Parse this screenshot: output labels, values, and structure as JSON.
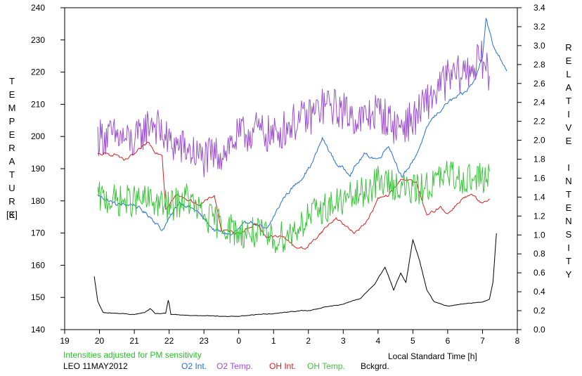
{
  "chart_data": {
    "type": "line",
    "x_ticks": [
      "19",
      "20",
      "21",
      "22",
      "23",
      "0",
      "1",
      "2",
      "3",
      "4",
      "5",
      "6",
      "7",
      "8"
    ],
    "y_left": {
      "label": "TEMPERATURE",
      "unit": "[K]",
      "ylim": [
        140,
        240
      ],
      "ticks": [
        "140",
        "150",
        "160",
        "170",
        "180",
        "190",
        "200",
        "210",
        "220",
        "230",
        "240"
      ]
    },
    "y_right": {
      "label": "RELATIVE INTENSITY",
      "ylim": [
        0.0,
        3.4
      ],
      "ticks": [
        "0.0",
        "0.2",
        "0.4",
        "0.6",
        "0.8",
        "1.0",
        "1.2",
        "1.4",
        "1.6",
        "1.8",
        "2.0",
        "2.2",
        "2.4",
        "2.6",
        "2.8",
        "3.0",
        "3.2",
        "3.4"
      ]
    },
    "xlabel": "Local Standard Time [h]",
    "note": "Intensities adjusted for PM sensitivity",
    "station_date": "LEO 11MAY2012",
    "grid": false,
    "legend_position": "bottom",
    "series": [
      {
        "name": "O2 Int.",
        "axis": "right",
        "color": "#1f6fd6",
        "noise": 0.04,
        "x": [
          19.95,
          20.5,
          21.0,
          21.5,
          21.8,
          22.3,
          22.8,
          23.3,
          23.8,
          24.3,
          24.8,
          25.3,
          25.8,
          26.1,
          26.4,
          26.8,
          27.2,
          27.6,
          28.0,
          28.3,
          28.7,
          29.1,
          29.5,
          30.0,
          30.5,
          30.8,
          31.0,
          31.1,
          31.3,
          31.7
        ],
        "y": [
          1.42,
          1.32,
          1.32,
          1.18,
          1.05,
          1.35,
          1.25,
          1.05,
          1.0,
          1.15,
          1.05,
          1.4,
          1.6,
          1.75,
          2.02,
          1.75,
          1.65,
          1.85,
          1.8,
          1.95,
          1.6,
          1.85,
          2.2,
          2.4,
          2.5,
          2.65,
          2.9,
          3.3,
          3.0,
          2.75
        ]
      },
      {
        "name": "O2 Temp.",
        "axis": "left",
        "color": "#9b4fd1",
        "noise": 6,
        "x": [
          19.95,
          20.5,
          21.0,
          21.5,
          22.0,
          22.5,
          23.0,
          23.5,
          24.0,
          24.5,
          25.0,
          25.5,
          26.0,
          26.5,
          27.0,
          27.5,
          28.0,
          28.5,
          29.0,
          29.5,
          30.0,
          30.5,
          31.0,
          31.2
        ],
        "y": [
          200,
          200,
          198,
          205,
          198,
          196,
          193,
          195,
          200,
          202,
          200,
          204,
          206,
          210,
          208,
          205,
          208,
          203,
          205,
          212,
          218,
          220,
          224,
          218
        ]
      },
      {
        "name": "OH Int.",
        "axis": "right",
        "color": "#d81e1e",
        "noise": 0.03,
        "x": [
          19.95,
          20.5,
          20.7,
          21.0,
          21.4,
          21.6,
          21.8,
          21.9,
          22.2,
          22.5,
          22.9,
          23.3,
          23.5,
          24.0,
          24.5,
          24.8,
          25.3,
          25.6,
          25.9,
          26.2,
          26.5,
          26.8,
          27.3,
          27.7,
          28.0,
          28.3,
          28.7,
          29.1,
          29.4,
          29.8,
          30.0,
          30.4,
          30.7,
          31.0,
          31.2
        ],
        "y": [
          1.85,
          1.85,
          1.78,
          1.85,
          1.98,
          1.88,
          1.85,
          1.28,
          1.42,
          1.38,
          1.32,
          1.42,
          1.05,
          1.02,
          1.12,
          0.98,
          0.98,
          0.88,
          0.85,
          0.96,
          1.08,
          1.18,
          1.02,
          1.15,
          1.38,
          1.42,
          1.6,
          1.55,
          1.2,
          1.3,
          1.22,
          1.38,
          1.42,
          1.32,
          1.38
        ]
      },
      {
        "name": "OH Temp.",
        "axis": "left",
        "color": "#3bc43b",
        "noise": 5,
        "x": [
          19.95,
          20.5,
          21.0,
          21.5,
          22.0,
          22.5,
          23.0,
          23.5,
          24.0,
          24.5,
          25.0,
          25.5,
          26.0,
          26.5,
          27.0,
          27.5,
          28.0,
          28.5,
          29.0,
          29.5,
          30.0,
          30.5,
          31.0,
          31.2
        ],
        "y": [
          181,
          180,
          180,
          180,
          178,
          181,
          175,
          173,
          170,
          170,
          168,
          170,
          175,
          178,
          180,
          182,
          186,
          185,
          183,
          185,
          188,
          187,
          187,
          188
        ]
      },
      {
        "name": "Bckgrd.",
        "axis": "right",
        "color": "#000000",
        "noise": 0.007,
        "x": [
          19.85,
          19.95,
          20.1,
          20.6,
          21.0,
          21.3,
          21.45,
          21.6,
          21.9,
          21.98,
          22.05,
          22.5,
          23.0,
          23.5,
          24.0,
          24.5,
          25.0,
          25.5,
          25.8,
          26.0,
          26.5,
          27.0,
          27.5,
          27.9,
          28.2,
          28.45,
          28.65,
          28.8,
          29.0,
          29.2,
          29.4,
          29.6,
          29.8,
          30.0,
          30.2,
          30.4,
          30.6,
          31.0,
          31.2,
          31.3,
          31.4
        ],
        "y": [
          0.56,
          0.3,
          0.18,
          0.17,
          0.16,
          0.18,
          0.22,
          0.17,
          0.17,
          0.32,
          0.16,
          0.15,
          0.15,
          0.14,
          0.14,
          0.16,
          0.17,
          0.19,
          0.2,
          0.2,
          0.24,
          0.27,
          0.33,
          0.48,
          0.66,
          0.42,
          0.6,
          0.5,
          0.95,
          0.72,
          0.42,
          0.3,
          0.27,
          0.25,
          0.26,
          0.27,
          0.28,
          0.29,
          0.32,
          0.5,
          1.02
        ]
      }
    ]
  }
}
